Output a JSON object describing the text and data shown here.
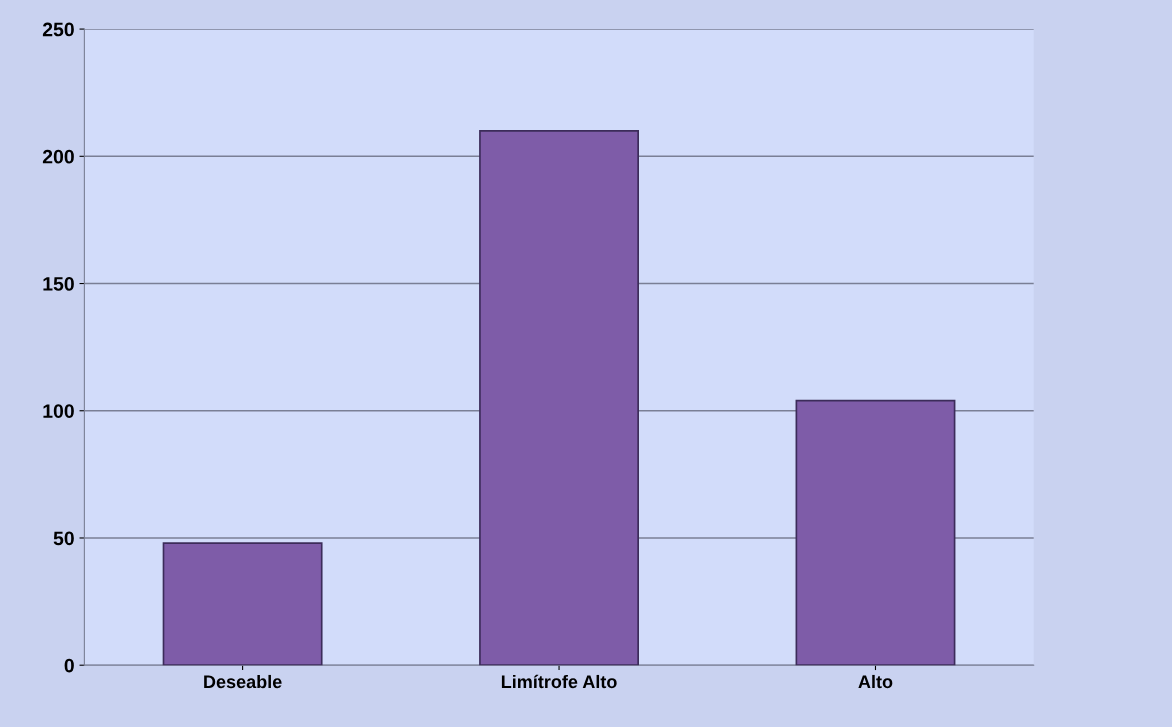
{
  "chart_data": {
    "type": "bar",
    "categories": [
      "Deseable",
      "Limítrofe Alto",
      "Alto"
    ],
    "values": [
      48,
      210,
      104
    ],
    "color": "#7e5ca8",
    "ylim": [
      0,
      250
    ],
    "yticks": [
      0,
      50,
      100,
      150,
      200,
      250
    ],
    "grid": "y",
    "legend": false
  }
}
